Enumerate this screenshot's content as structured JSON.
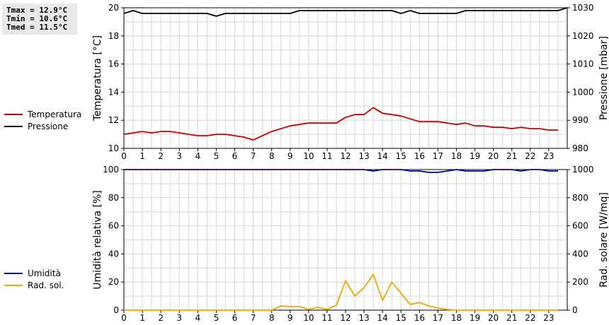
{
  "stats": {
    "tmax": "Tmax = 12.9°C",
    "tmin": "Tmin = 10.6°C",
    "tmed": "Tmed = 11.5°C"
  },
  "chart_data": [
    {
      "type": "line",
      "ylabel": "Temperatura [°C]",
      "y2label": "Pressione [mbar]",
      "xlim": [
        0,
        24
      ],
      "ylim": [
        10,
        20
      ],
      "y2lim": [
        980,
        1030
      ],
      "xticks": [
        0,
        1,
        2,
        3,
        4,
        5,
        6,
        7,
        8,
        9,
        10,
        11,
        12,
        13,
        14,
        15,
        16,
        17,
        18,
        19,
        20,
        21,
        22,
        23
      ],
      "yticks": [
        10,
        12,
        14,
        16,
        18,
        20
      ],
      "y2ticks": [
        980,
        990,
        1000,
        1010,
        1020,
        1030
      ],
      "grid": true,
      "legend_placement": "left",
      "series": [
        {
          "name": "Temperatura",
          "color": "#cc0000",
          "axis": "left",
          "x": [
            0,
            0.5,
            1,
            1.5,
            2,
            2.5,
            3,
            3.5,
            4,
            4.5,
            5,
            5.5,
            6,
            6.5,
            7,
            7.5,
            8,
            8.5,
            9,
            9.5,
            10,
            10.5,
            11,
            11.5,
            12,
            12.5,
            13,
            13.5,
            14,
            14.5,
            15,
            15.5,
            16,
            16.5,
            17,
            17.5,
            18,
            18.5,
            19,
            19.5,
            20,
            20.5,
            21,
            21.5,
            22,
            22.5,
            23,
            23.5
          ],
          "y": [
            11.0,
            11.1,
            11.2,
            11.1,
            11.2,
            11.2,
            11.1,
            11.0,
            10.9,
            10.9,
            11.0,
            11.0,
            10.9,
            10.8,
            10.6,
            10.9,
            11.2,
            11.4,
            11.6,
            11.7,
            11.8,
            11.8,
            11.8,
            11.8,
            12.2,
            12.4,
            12.4,
            12.9,
            12.5,
            12.4,
            12.3,
            12.1,
            11.9,
            11.9,
            11.9,
            11.8,
            11.7,
            11.8,
            11.6,
            11.6,
            11.5,
            11.5,
            11.4,
            11.5,
            11.4,
            11.4,
            11.3,
            11.3
          ]
        },
        {
          "name": "Pressione",
          "color": "#000000",
          "axis": "right",
          "x": [
            0,
            0.5,
            1,
            1.5,
            2,
            2.5,
            3,
            3.5,
            4,
            4.5,
            5,
            5.5,
            6,
            6.5,
            7,
            7.5,
            8,
            8.5,
            9,
            9.5,
            10,
            10.5,
            11,
            11.5,
            12,
            12.5,
            13,
            13.5,
            14,
            14.5,
            15,
            15.5,
            16,
            16.5,
            17,
            17.5,
            18,
            18.5,
            19,
            19.5,
            20,
            20.5,
            21,
            21.5,
            22,
            22.5,
            23,
            23.5,
            24
          ],
          "y": [
            1028,
            1029,
            1028,
            1028,
            1028,
            1028,
            1028,
            1028,
            1028,
            1028,
            1027,
            1028,
            1028,
            1028,
            1028,
            1028,
            1028,
            1028,
            1028,
            1029,
            1029,
            1029,
            1029,
            1029,
            1029,
            1029,
            1029,
            1029,
            1029,
            1029,
            1028,
            1029,
            1028,
            1028,
            1028,
            1028,
            1028,
            1029,
            1029,
            1029,
            1029,
            1029,
            1029,
            1029,
            1029,
            1029,
            1029,
            1029,
            1030
          ]
        }
      ]
    },
    {
      "type": "line",
      "ylabel": "Umidità relativa [%]",
      "y2label": "Rad. solare [W/mq]",
      "xlim": [
        0,
        24
      ],
      "ylim": [
        0,
        100
      ],
      "y2lim": [
        0,
        1000
      ],
      "xticks": [
        0,
        1,
        2,
        3,
        4,
        5,
        6,
        7,
        8,
        9,
        10,
        11,
        12,
        13,
        14,
        15,
        16,
        17,
        18,
        19,
        20,
        21,
        22,
        23
      ],
      "yticks": [
        0,
        20,
        40,
        60,
        80,
        100
      ],
      "y2ticks": [
        0,
        200,
        400,
        600,
        800,
        1000
      ],
      "grid": true,
      "legend_placement": "left",
      "series": [
        {
          "name": "Umidità",
          "color": "#0000aa",
          "axis": "left",
          "x": [
            0,
            1,
            2,
            3,
            4,
            5,
            6,
            7,
            8,
            9,
            10,
            11,
            12,
            13,
            13.5,
            14,
            15,
            15.5,
            16,
            16.5,
            17,
            17.5,
            18,
            18.5,
            19,
            19.5,
            20,
            20.5,
            21,
            21.5,
            22,
            22.5,
            23,
            23.5
          ],
          "y": [
            100,
            100,
            100,
            100,
            100,
            100,
            100,
            100,
            100,
            100,
            100,
            100,
            100,
            100,
            99,
            100,
            100,
            99,
            99,
            98,
            98,
            99,
            100,
            99,
            99,
            99,
            100,
            100,
            100,
            99,
            100,
            100,
            99,
            99
          ]
        },
        {
          "name": "Rad. sol.",
          "color": "#f0a800",
          "axis": "right",
          "x": [
            0,
            0.5,
            1,
            1.5,
            2,
            2.5,
            3,
            3.5,
            4,
            4.5,
            5,
            5.5,
            6,
            6.5,
            7,
            7.5,
            8,
            8.5,
            9,
            9.5,
            10,
            10.5,
            11,
            11.5,
            12,
            12.5,
            13,
            13.5,
            14,
            14.5,
            15,
            15.5,
            16,
            16.5,
            17,
            17.5,
            18,
            18.5,
            19,
            19.5,
            20,
            20.5,
            21,
            21.5,
            22,
            22.5,
            23,
            23.5
          ],
          "y": [
            0,
            0,
            0,
            0,
            0,
            0,
            0,
            0,
            0,
            0,
            0,
            0,
            0,
            0,
            0,
            0,
            0,
            30,
            25,
            25,
            5,
            20,
            5,
            35,
            210,
            100,
            160,
            255,
            70,
            200,
            120,
            40,
            55,
            30,
            15,
            5,
            0,
            0,
            0,
            0,
            0,
            0,
            0,
            0,
            0,
            0,
            0,
            0
          ]
        }
      ]
    }
  ]
}
